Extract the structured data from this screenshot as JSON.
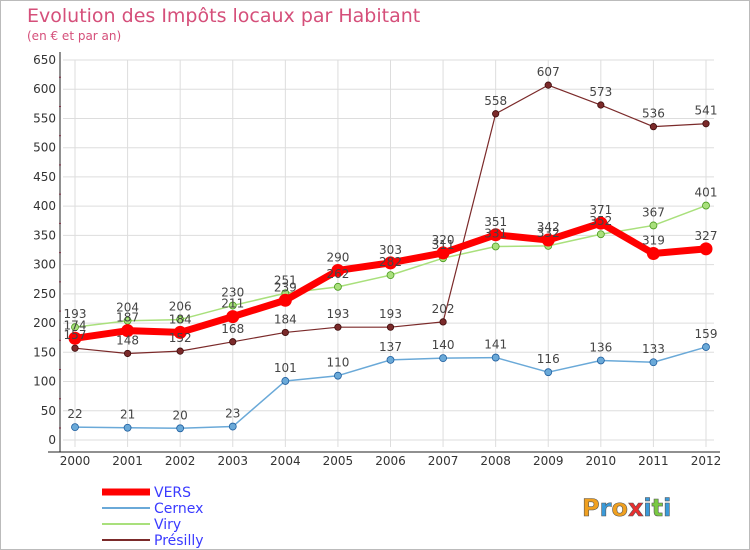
{
  "chart_data": {
    "type": "line",
    "title": "Evolution des Impôts locaux par Habitant",
    "subtitle": "(en € et par an)",
    "xlabel": "",
    "ylabel": "",
    "ylim": [
      0,
      650
    ],
    "ytick_step": 50,
    "grid": true,
    "legend_position": "bottom-left",
    "categories": [
      "2000",
      "2001",
      "2002",
      "2003",
      "2004",
      "2005",
      "2006",
      "2007",
      "2008",
      "2009",
      "2010",
      "2011",
      "2012"
    ],
    "series": [
      {
        "name": "VERS",
        "color": "#ff0000",
        "values": [
          174,
          187,
          184,
          211,
          239,
          290,
          303,
          320,
          351,
          342,
          371,
          319,
          327
        ]
      },
      {
        "name": "Cernex",
        "color": "#6aa9d8",
        "values": [
          22,
          21,
          20,
          23,
          101,
          110,
          137,
          140,
          141,
          116,
          136,
          133,
          159
        ]
      },
      {
        "name": "Viry",
        "color": "#a9e07c",
        "values": [
          193,
          204,
          206,
          230,
          251,
          262,
          282,
          311,
          331,
          332,
          352,
          367,
          401
        ]
      },
      {
        "name": "Présilly",
        "color": "#7b2a2a",
        "values": [
          157,
          148,
          152,
          168,
          184,
          193,
          193,
          202,
          558,
          607,
          573,
          536,
          541
        ]
      }
    ]
  },
  "branding": {
    "logo_text": "Proxiti",
    "logo_colors": [
      "#f0a020",
      "#3a9ad9",
      "#f0a020",
      "#e83030",
      "#3a9ad9",
      "#7ac943",
      "#3a9ad9"
    ]
  }
}
